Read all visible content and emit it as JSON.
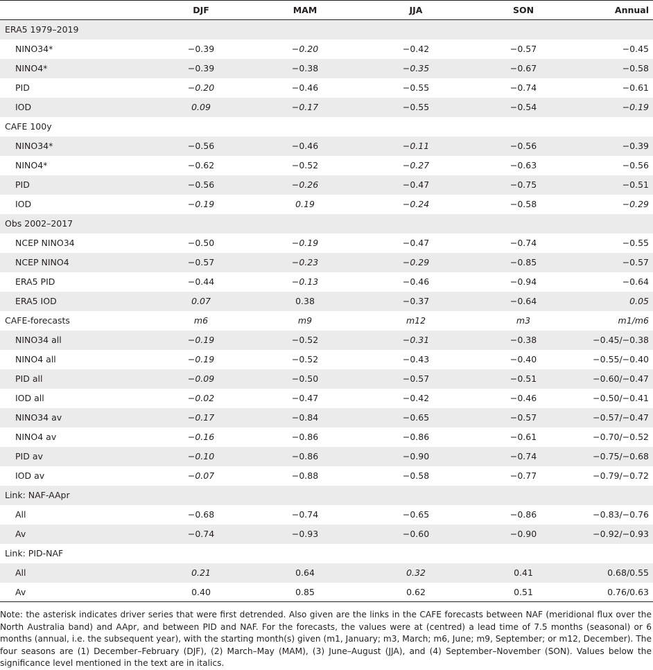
{
  "header": [
    "",
    "DJF",
    "MAM",
    "JJA",
    "SON",
    "Annual"
  ],
  "rows": [
    {
      "type": "group",
      "cells": [
        {
          "t": "ERA5 1979–2019"
        },
        {
          "t": ""
        },
        {
          "t": ""
        },
        {
          "t": ""
        },
        {
          "t": ""
        },
        {
          "t": ""
        }
      ]
    },
    {
      "type": "sub",
      "cells": [
        {
          "t": "NINO34*"
        },
        {
          "t": "−0.39"
        },
        {
          "t": "−0.20",
          "i": true
        },
        {
          "t": "−0.42"
        },
        {
          "t": "−0.57"
        },
        {
          "t": "−0.45"
        }
      ]
    },
    {
      "type": "sub",
      "cells": [
        {
          "t": "NINO4*"
        },
        {
          "t": "−0.39"
        },
        {
          "t": "−0.38"
        },
        {
          "t": "−0.35",
          "i": true
        },
        {
          "t": "−0.67"
        },
        {
          "t": "−0.58"
        }
      ]
    },
    {
      "type": "sub",
      "cells": [
        {
          "t": "PID"
        },
        {
          "t": "−0.20",
          "i": true
        },
        {
          "t": "−0.46"
        },
        {
          "t": "−0.55"
        },
        {
          "t": "−0.74"
        },
        {
          "t": "−0.61"
        }
      ]
    },
    {
      "type": "sub",
      "cells": [
        {
          "t": "IOD"
        },
        {
          "t": "0.09",
          "i": true
        },
        {
          "t": "−0.17",
          "i": true
        },
        {
          "t": "−0.55"
        },
        {
          "t": "−0.54"
        },
        {
          "t": "−0.19",
          "i": true
        }
      ]
    },
    {
      "type": "group",
      "cells": [
        {
          "t": "CAFE 100y"
        },
        {
          "t": ""
        },
        {
          "t": ""
        },
        {
          "t": ""
        },
        {
          "t": ""
        },
        {
          "t": ""
        }
      ]
    },
    {
      "type": "sub",
      "cells": [
        {
          "t": "NINO34*"
        },
        {
          "t": "−0.56"
        },
        {
          "t": "−0.46"
        },
        {
          "t": "−0.11",
          "i": true
        },
        {
          "t": "−0.56"
        },
        {
          "t": "−0.39"
        }
      ]
    },
    {
      "type": "sub",
      "cells": [
        {
          "t": "NINO4*"
        },
        {
          "t": "−0.62"
        },
        {
          "t": "−0.52"
        },
        {
          "t": "−0.27",
          "i": true
        },
        {
          "t": "−0.63"
        },
        {
          "t": "−0.56"
        }
      ]
    },
    {
      "type": "sub",
      "cells": [
        {
          "t": "PID"
        },
        {
          "t": "−0.56"
        },
        {
          "t": "−0.26",
          "i": true
        },
        {
          "t": "−0.47"
        },
        {
          "t": "−0.75"
        },
        {
          "t": "−0.51"
        }
      ]
    },
    {
      "type": "sub",
      "cells": [
        {
          "t": "IOD"
        },
        {
          "t": "−0.19",
          "i": true
        },
        {
          "t": "0.19",
          "i": true
        },
        {
          "t": "−0.24",
          "i": true
        },
        {
          "t": "−0.58"
        },
        {
          "t": "−0.29",
          "i": true
        }
      ]
    },
    {
      "type": "group",
      "cells": [
        {
          "t": "Obs 2002–2017"
        },
        {
          "t": ""
        },
        {
          "t": ""
        },
        {
          "t": ""
        },
        {
          "t": ""
        },
        {
          "t": ""
        }
      ]
    },
    {
      "type": "sub",
      "cells": [
        {
          "t": "NCEP NINO34"
        },
        {
          "t": "−0.50"
        },
        {
          "t": "−0.19",
          "i": true
        },
        {
          "t": "−0.47"
        },
        {
          "t": "−0.74"
        },
        {
          "t": "−0.55"
        }
      ]
    },
    {
      "type": "sub",
      "cells": [
        {
          "t": "NCEP NINO4"
        },
        {
          "t": "−0.57"
        },
        {
          "t": "−0.23",
          "i": true
        },
        {
          "t": "−0.29",
          "i": true
        },
        {
          "t": "−0.85"
        },
        {
          "t": "−0.57"
        }
      ]
    },
    {
      "type": "sub",
      "cells": [
        {
          "t": "ERA5 PID"
        },
        {
          "t": "−0.44"
        },
        {
          "t": "−0.13",
          "i": true
        },
        {
          "t": "−0.46"
        },
        {
          "t": "−0.94"
        },
        {
          "t": "−0.64"
        }
      ]
    },
    {
      "type": "sub",
      "cells": [
        {
          "t": "ERA5 IOD"
        },
        {
          "t": "0.07",
          "i": true
        },
        {
          "t": "0.38"
        },
        {
          "t": "−0.37"
        },
        {
          "t": "−0.64"
        },
        {
          "t": "0.05",
          "i": true
        }
      ]
    },
    {
      "type": "group",
      "cells": [
        {
          "t": "CAFE-forecasts"
        },
        {
          "t": "m6",
          "i": true
        },
        {
          "t": "m9",
          "i": true
        },
        {
          "t": "m12",
          "i": true
        },
        {
          "t": "m3",
          "i": true
        },
        {
          "t": "m1/m6",
          "i": true
        }
      ]
    },
    {
      "type": "sub",
      "cells": [
        {
          "t": "NINO34 all"
        },
        {
          "t": "−0.19",
          "i": true
        },
        {
          "t": "−0.52"
        },
        {
          "t": "−0.31",
          "i": true
        },
        {
          "t": "−0.38"
        },
        {
          "t": "−0.45/−0.38"
        }
      ]
    },
    {
      "type": "sub",
      "cells": [
        {
          "t": "NINO4 all"
        },
        {
          "t": "−0.19",
          "i": true
        },
        {
          "t": "−0.52"
        },
        {
          "t": "−0.43"
        },
        {
          "t": "−0.40"
        },
        {
          "t": "−0.55/−0.40"
        }
      ]
    },
    {
      "type": "sub",
      "cells": [
        {
          "t": "PID all"
        },
        {
          "t": "−0.09",
          "i": true
        },
        {
          "t": "−0.50"
        },
        {
          "t": "−0.57"
        },
        {
          "t": "−0.51"
        },
        {
          "t": "−0.60/−0.47"
        }
      ]
    },
    {
      "type": "sub",
      "cells": [
        {
          "t": "IOD all"
        },
        {
          "t": "−0.02",
          "i": true
        },
        {
          "t": "−0.47"
        },
        {
          "t": "−0.42"
        },
        {
          "t": "−0.46"
        },
        {
          "t": "−0.50/−0.41"
        }
      ]
    },
    {
      "type": "sub",
      "cells": [
        {
          "t": "NINO34 av"
        },
        {
          "t": "−0.17",
          "i": true
        },
        {
          "t": "−0.84"
        },
        {
          "t": "−0.65"
        },
        {
          "t": "−0.57"
        },
        {
          "t": "−0.57/−0.47"
        }
      ]
    },
    {
      "type": "sub",
      "cells": [
        {
          "t": "NINO4 av"
        },
        {
          "t": "−0.16",
          "i": true
        },
        {
          "t": "−0.86"
        },
        {
          "t": "−0.86"
        },
        {
          "t": "−0.61"
        },
        {
          "t": "−0.70/−0.52"
        }
      ]
    },
    {
      "type": "sub",
      "cells": [
        {
          "t": "PID av"
        },
        {
          "t": "−0.10",
          "i": true
        },
        {
          "t": "−0.86"
        },
        {
          "t": "−0.90"
        },
        {
          "t": "−0.74"
        },
        {
          "t": "−0.75/−0.68"
        }
      ]
    },
    {
      "type": "sub",
      "cells": [
        {
          "t": "IOD av"
        },
        {
          "t": "−0.07",
          "i": true
        },
        {
          "t": "−0.88"
        },
        {
          "t": "−0.58"
        },
        {
          "t": "−0.77"
        },
        {
          "t": "−0.79/−0.72"
        }
      ]
    },
    {
      "type": "group",
      "cells": [
        {
          "t": "Link: NAF-AApr"
        },
        {
          "t": ""
        },
        {
          "t": ""
        },
        {
          "t": ""
        },
        {
          "t": ""
        },
        {
          "t": ""
        }
      ]
    },
    {
      "type": "sub",
      "cells": [
        {
          "t": "All"
        },
        {
          "t": "−0.68"
        },
        {
          "t": "−0.74"
        },
        {
          "t": "−0.65"
        },
        {
          "t": "−0.86"
        },
        {
          "t": "−0.83/−0.76"
        }
      ]
    },
    {
      "type": "sub",
      "cells": [
        {
          "t": "Av"
        },
        {
          "t": "−0.74"
        },
        {
          "t": "−0.93"
        },
        {
          "t": "−0.60"
        },
        {
          "t": "−0.90"
        },
        {
          "t": "−0.92/−0.93"
        }
      ]
    },
    {
      "type": "group",
      "cells": [
        {
          "t": "Link: PID-NAF"
        },
        {
          "t": ""
        },
        {
          "t": ""
        },
        {
          "t": ""
        },
        {
          "t": ""
        },
        {
          "t": ""
        }
      ]
    },
    {
      "type": "sub",
      "cells": [
        {
          "t": "All"
        },
        {
          "t": "0.21",
          "i": true
        },
        {
          "t": "0.64"
        },
        {
          "t": "0.32",
          "i": true
        },
        {
          "t": "0.41"
        },
        {
          "t": "0.68/0.55"
        }
      ]
    },
    {
      "type": "sub",
      "cells": [
        {
          "t": "Av"
        },
        {
          "t": "0.40"
        },
        {
          "t": "0.85"
        },
        {
          "t": "0.62"
        },
        {
          "t": "0.51"
        },
        {
          "t": "0.76/0.63"
        }
      ]
    }
  ],
  "note": "Note: the asterisk indicates driver series that were first detrended. Also given are the links in the CAFE forecasts between NAF (meridional flux over the North Australia band) and AApr, and between PID and NAF. For the forecasts, the values were at (centred) a lead time of 7.5 months (seasonal) or 6 months (annual, i.e. the subsequent year), with the starting month(s) given (m1, January; m3, March; m6, June; m9, September; or m12, December). The four seasons are (1) December–February (DJF), (2) March–May (MAM), (3) June–August (JJA), and (4) September–November (SON). Values below the significance level mentioned in the text are in italics."
}
